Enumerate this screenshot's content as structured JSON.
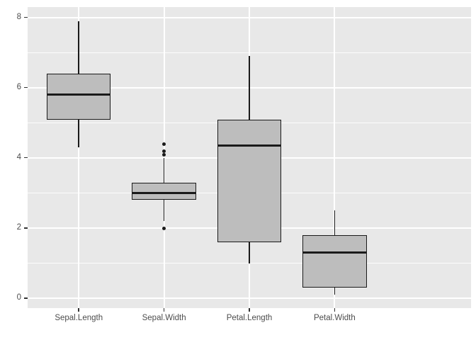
{
  "chart_data": {
    "type": "boxplot",
    "title": "",
    "xlabel": "",
    "ylabel": "",
    "categories": [
      "Sepal.Length",
      "Sepal.Width",
      "Petal.Length",
      "Petal.Width"
    ],
    "series": [
      {
        "name": "Sepal.Length",
        "whisker_low": 4.3,
        "q1": 5.1,
        "median": 5.8,
        "q3": 6.4,
        "whisker_high": 7.9,
        "outliers": []
      },
      {
        "name": "Sepal.Width",
        "whisker_low": 2.2,
        "q1": 2.8,
        "median": 3.0,
        "q3": 3.3,
        "whisker_high": 4.0,
        "outliers": [
          2.0,
          4.1,
          4.2,
          4.4
        ]
      },
      {
        "name": "Petal.Length",
        "whisker_low": 1.0,
        "q1": 1.6,
        "median": 4.35,
        "q3": 5.1,
        "whisker_high": 6.9,
        "outliers": []
      },
      {
        "name": "Petal.Width",
        "whisker_low": 0.1,
        "q1": 0.3,
        "median": 1.3,
        "q3": 1.8,
        "whisker_high": 2.5,
        "outliers": []
      }
    ],
    "y_axis": {
      "major_ticks": [
        0,
        2,
        4,
        6,
        8
      ],
      "minor_gridlines": [
        1,
        3,
        5,
        7
      ],
      "lim": [
        -0.28,
        8.3
      ]
    },
    "grid": true,
    "legend": "none",
    "style": {
      "background": "#FFFFFF",
      "panel_bg": "#E8E8E8",
      "grid_major": "#FFFFFF",
      "grid_minor": "#FFFFFF",
      "box_fill": "#BDBDBD",
      "line_color": "#1A1A1A",
      "axis_text_color": "#4D4D4D",
      "tick_mark_color": "#333333"
    }
  }
}
